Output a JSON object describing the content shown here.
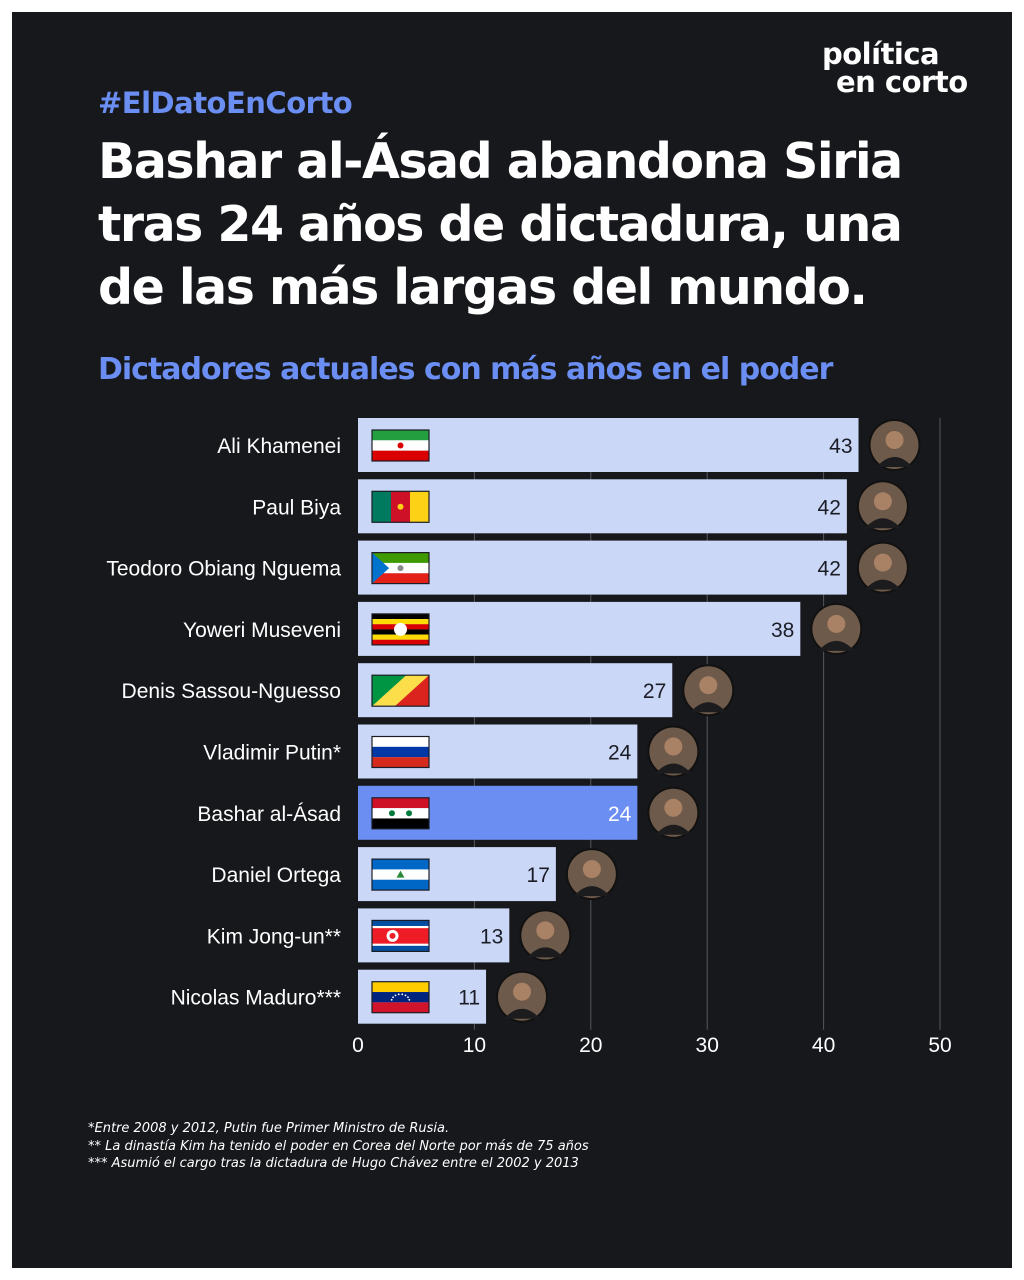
{
  "brand": {
    "line1": "política",
    "line2": "en corto"
  },
  "hashtag": "#ElDatoEnCorto",
  "headline": "Bashar al-Ásad abandona Siria tras 24 años de dictadura, una de las más largas del mundo.",
  "chart_data": {
    "type": "bar",
    "orientation": "horizontal",
    "title": "Dictadores actuales con más años en el poder",
    "categories": [
      "Ali Khamenei",
      "Paul Biya",
      "Teodoro Obiang Nguema",
      "Yoweri Museveni",
      "Denis Sassou-Nguesso",
      "Vladimir Putin*",
      "Bashar al-Ásad",
      "Daniel Ortega",
      "Kim Jong-un**",
      "Nicolas Maduro***"
    ],
    "values": [
      43,
      42,
      42,
      38,
      27,
      24,
      24,
      17,
      13,
      11
    ],
    "flags": [
      "iran",
      "cameroon",
      "equatorial-guinea",
      "uganda",
      "congo",
      "russia",
      "syria",
      "nicaragua",
      "north-korea",
      "venezuela"
    ],
    "highlight": "Bashar al-Ásad",
    "xlim": [
      0,
      50
    ],
    "xticks": [
      0,
      10,
      20,
      30,
      40,
      50
    ],
    "grid": true,
    "colors": {
      "bar": "#cbd7f7",
      "highlight": "#6b8ef3",
      "value_text": "#1b1d26",
      "grid": "#555760",
      "label": "#ffffff"
    }
  },
  "footnotes": [
    "*Entre 2008 y 2012, Putin fue Primer Ministro de Rusia.",
    "** La dinastía Kim ha tenido el poder en Corea del Norte por más de 75 años",
    "*** Asumió el cargo tras la dictadura de Hugo Chávez entre el 2002 y 2013"
  ]
}
